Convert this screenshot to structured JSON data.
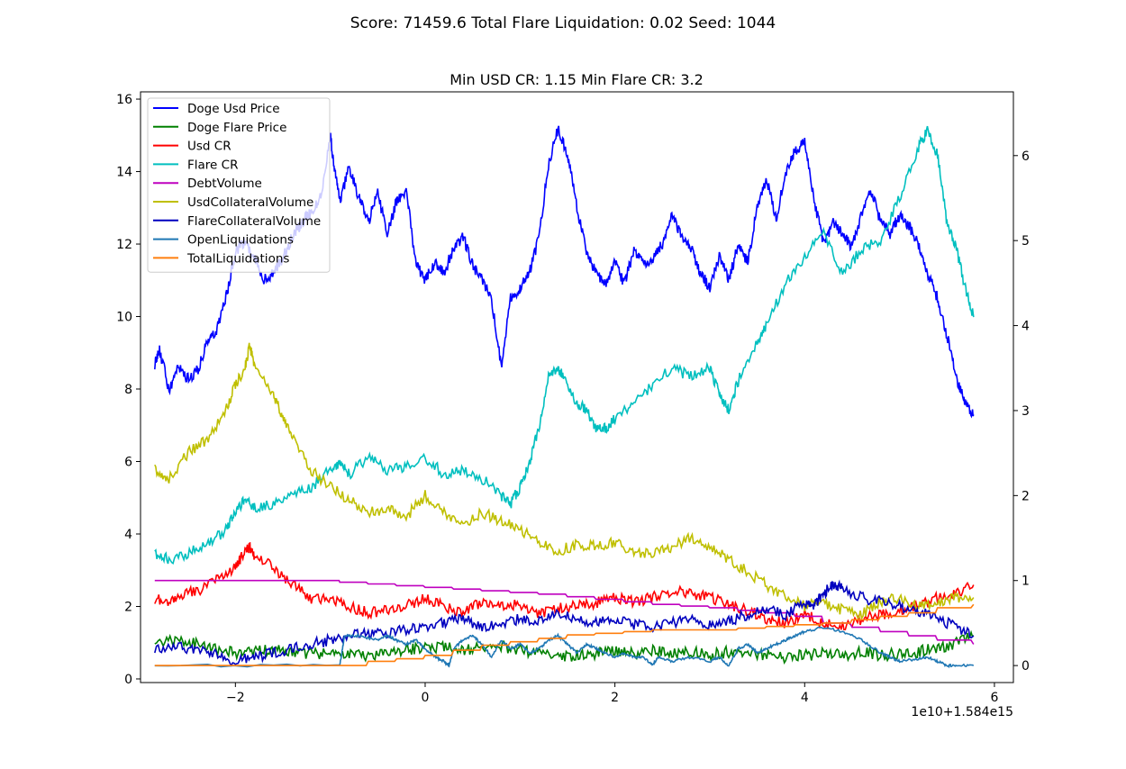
{
  "figure": {
    "suptitle": "Score: 71459.6 Total Flare Liquidation: 0.02 Seed: 1044"
  },
  "chart_data": {
    "type": "line",
    "title": "Min USD CR: 1.15 Min Flare CR: 3.2",
    "x_offset_label": "1e10+1.584e15",
    "xlim": [
      -3.0,
      6.2
    ],
    "x_ticks": [
      -2,
      0,
      2,
      4,
      6
    ],
    "x_tick_labels": [
      "−2",
      "0",
      "2",
      "4",
      "6"
    ],
    "ylim_left": [
      -0.1,
      16.2
    ],
    "left_ticks": [
      0,
      2,
      4,
      6,
      8,
      10,
      12,
      14,
      16
    ],
    "left_tick_labels": [
      "0",
      "2",
      "4",
      "6",
      "8",
      "10",
      "12",
      "14",
      "16"
    ],
    "ylim_right": [
      -0.2,
      6.75
    ],
    "right_ticks": [
      0,
      1,
      2,
      3,
      4,
      5,
      6
    ],
    "right_tick_labels": [
      "0",
      "1",
      "2",
      "3",
      "4",
      "5",
      "6"
    ],
    "grid": false,
    "legend_position": "upper-left",
    "series": [
      {
        "name": "Doge Usd Price",
        "axis": "left",
        "color": "#0000ff",
        "x": [
          -2.85,
          -2.8,
          -2.7,
          -2.6,
          -2.5,
          -2.4,
          -2.3,
          -2.2,
          -2.1,
          -2.0,
          -1.9,
          -1.8,
          -1.7,
          -1.6,
          -1.5,
          -1.4,
          -1.3,
          -1.2,
          -1.1,
          -1.0,
          -0.95,
          -0.9,
          -0.8,
          -0.7,
          -0.6,
          -0.5,
          -0.4,
          -0.3,
          -0.2,
          -0.1,
          0.0,
          0.1,
          0.2,
          0.3,
          0.4,
          0.5,
          0.6,
          0.7,
          0.8,
          0.9,
          1.0,
          1.1,
          1.2,
          1.3,
          1.4,
          1.5,
          1.6,
          1.7,
          1.8,
          1.9,
          2.0,
          2.1,
          2.2,
          2.3,
          2.4,
          2.5,
          2.6,
          2.7,
          2.8,
          2.9,
          3.0,
          3.1,
          3.2,
          3.3,
          3.4,
          3.5,
          3.6,
          3.7,
          3.8,
          3.9,
          4.0,
          4.1,
          4.2,
          4.3,
          4.4,
          4.5,
          4.6,
          4.7,
          4.8,
          4.9,
          5.0,
          5.1,
          5.2,
          5.3,
          5.4,
          5.5,
          5.6,
          5.7,
          5.78
        ],
        "y": [
          8.7,
          9.1,
          8.0,
          8.6,
          8.3,
          8.5,
          9.3,
          9.6,
          10.5,
          11.8,
          12.1,
          11.6,
          11.0,
          11.2,
          11.6,
          12.2,
          12.6,
          12.9,
          13.3,
          15.0,
          14.0,
          13.2,
          14.1,
          13.3,
          12.6,
          13.4,
          12.3,
          13.2,
          13.5,
          11.5,
          11.0,
          11.5,
          11.2,
          11.9,
          12.2,
          11.4,
          11.0,
          10.5,
          8.6,
          10.5,
          10.8,
          11.2,
          12.2,
          14.2,
          15.2,
          14.5,
          13.0,
          11.8,
          11.2,
          10.9,
          11.5,
          10.9,
          11.8,
          11.5,
          11.6,
          12.0,
          12.8,
          12.2,
          11.9,
          11.2,
          10.8,
          11.7,
          11.0,
          12.0,
          11.5,
          13.0,
          13.8,
          12.7,
          14.0,
          14.6,
          14.8,
          13.2,
          12.0,
          12.6,
          12.3,
          11.9,
          12.8,
          13.5,
          12.6,
          12.3,
          12.8,
          12.5,
          12.0,
          11.2,
          10.5,
          9.5,
          8.3,
          7.6,
          7.3
        ]
      },
      {
        "name": "Doge Flare Price",
        "axis": "left",
        "color": "#008000",
        "x": [
          -2.85,
          -2.6,
          -2.4,
          -2.2,
          -2.0,
          -1.8,
          -1.6,
          -1.4,
          -1.2,
          -1.0,
          -0.8,
          -0.6,
          -0.4,
          -0.2,
          0.0,
          0.2,
          0.4,
          0.6,
          0.8,
          1.0,
          1.2,
          1.4,
          1.6,
          1.8,
          2.0,
          2.2,
          2.4,
          2.6,
          2.8,
          3.0,
          3.2,
          3.4,
          3.6,
          3.8,
          4.0,
          4.2,
          4.4,
          4.6,
          4.8,
          5.0,
          5.2,
          5.4,
          5.6,
          5.78
        ],
        "y": [
          1.0,
          1.05,
          0.95,
          0.85,
          0.7,
          0.75,
          0.8,
          0.75,
          0.7,
          0.7,
          0.65,
          0.65,
          0.75,
          0.8,
          0.85,
          0.9,
          0.8,
          0.85,
          0.9,
          0.8,
          0.7,
          0.6,
          0.65,
          0.7,
          0.75,
          0.7,
          0.8,
          0.7,
          0.75,
          0.65,
          0.75,
          0.7,
          0.65,
          0.6,
          0.65,
          0.7,
          0.65,
          0.75,
          0.65,
          0.7,
          0.75,
          0.85,
          1.0,
          1.2
        ]
      },
      {
        "name": "Usd CR",
        "axis": "right",
        "color": "#ff0000",
        "x": [
          -2.85,
          -2.7,
          -2.6,
          -2.4,
          -2.2,
          -2.0,
          -1.9,
          -1.85,
          -1.8,
          -1.6,
          -1.4,
          -1.2,
          -1.0,
          -0.8,
          -0.6,
          -0.4,
          -0.2,
          0.0,
          0.2,
          0.4,
          0.6,
          0.8,
          1.0,
          1.2,
          1.4,
          1.6,
          1.8,
          2.0,
          2.2,
          2.4,
          2.6,
          2.8,
          3.0,
          3.2,
          3.4,
          3.6,
          3.8,
          4.0,
          4.2,
          4.4,
          4.6,
          4.8,
          5.0,
          5.2,
          5.4,
          5.6,
          5.78
        ],
        "y": [
          0.78,
          0.75,
          0.82,
          0.88,
          1.0,
          1.15,
          1.35,
          1.4,
          1.3,
          1.15,
          0.95,
          0.78,
          0.8,
          0.7,
          0.62,
          0.65,
          0.7,
          0.8,
          0.7,
          0.62,
          0.75,
          0.68,
          0.72,
          0.6,
          0.68,
          0.7,
          0.74,
          0.8,
          0.75,
          0.8,
          0.88,
          0.85,
          0.8,
          0.72,
          0.65,
          0.55,
          0.5,
          0.6,
          0.5,
          0.45,
          0.55,
          0.6,
          0.65,
          0.7,
          0.8,
          0.85,
          0.95
        ]
      },
      {
        "name": "Flare CR",
        "axis": "right",
        "color": "#00bfbf",
        "x": [
          -2.85,
          -2.7,
          -2.5,
          -2.3,
          -2.1,
          -2.0,
          -1.9,
          -1.8,
          -1.6,
          -1.4,
          -1.2,
          -1.0,
          -0.9,
          -0.8,
          -0.6,
          -0.4,
          -0.2,
          0.0,
          0.2,
          0.4,
          0.6,
          0.8,
          0.9,
          1.0,
          1.1,
          1.2,
          1.3,
          1.4,
          1.5,
          1.6,
          1.7,
          1.8,
          1.9,
          2.0,
          2.2,
          2.4,
          2.6,
          2.8,
          3.0,
          3.1,
          3.2,
          3.3,
          3.5,
          3.6,
          3.8,
          4.0,
          4.2,
          4.4,
          4.6,
          4.8,
          5.0,
          5.2,
          5.3,
          5.4,
          5.5,
          5.6,
          5.7,
          5.78
        ],
        "y": [
          1.32,
          1.25,
          1.32,
          1.42,
          1.6,
          1.8,
          1.95,
          1.85,
          1.9,
          2.0,
          2.1,
          2.3,
          2.4,
          2.25,
          2.45,
          2.3,
          2.35,
          2.45,
          2.25,
          2.3,
          2.2,
          2.0,
          1.9,
          2.1,
          2.4,
          2.8,
          3.4,
          3.5,
          3.3,
          3.1,
          3.0,
          2.8,
          2.8,
          2.9,
          3.1,
          3.3,
          3.5,
          3.4,
          3.5,
          3.2,
          3.0,
          3.35,
          3.8,
          4.0,
          4.5,
          4.8,
          5.1,
          4.6,
          4.9,
          5.0,
          5.5,
          6.1,
          6.3,
          6.0,
          5.2,
          4.9,
          4.4,
          4.1
        ]
      },
      {
        "name": "DebtVolume",
        "axis": "right",
        "color": "#bf00bf",
        "x": [
          -2.85,
          -1.0,
          -0.9,
          -0.6,
          -0.3,
          0.0,
          0.3,
          0.6,
          0.9,
          1.2,
          1.5,
          1.8,
          2.1,
          2.4,
          2.7,
          3.0,
          3.3,
          3.6,
          3.9,
          4.2,
          4.5,
          4.8,
          5.1,
          5.4,
          5.78
        ],
        "y": [
          1.0,
          1.0,
          0.98,
          0.96,
          0.94,
          0.92,
          0.9,
          0.88,
          0.86,
          0.84,
          0.81,
          0.78,
          0.75,
          0.72,
          0.7,
          0.68,
          0.65,
          0.62,
          0.58,
          0.5,
          0.45,
          0.4,
          0.35,
          0.3,
          0.25
        ]
      },
      {
        "name": "UsdCollateralVolume",
        "axis": "right",
        "color": "#bfbf00",
        "x": [
          -2.85,
          -2.7,
          -2.5,
          -2.3,
          -2.1,
          -2.0,
          -1.9,
          -1.85,
          -1.8,
          -1.6,
          -1.5,
          -1.4,
          -1.2,
          -1.0,
          -0.8,
          -0.6,
          -0.4,
          -0.2,
          0.0,
          0.2,
          0.4,
          0.6,
          0.8,
          1.0,
          1.2,
          1.4,
          1.6,
          1.8,
          2.0,
          2.2,
          2.4,
          2.6,
          2.8,
          3.0,
          3.2,
          3.4,
          3.6,
          3.8,
          4.0,
          4.2,
          4.4,
          4.6,
          4.8,
          5.0,
          5.2,
          5.4,
          5.6,
          5.78
        ],
        "y": [
          2.3,
          2.2,
          2.5,
          2.65,
          3.0,
          3.3,
          3.5,
          3.75,
          3.55,
          3.2,
          2.9,
          2.7,
          2.3,
          2.1,
          1.95,
          1.8,
          1.85,
          1.75,
          2.0,
          1.8,
          1.65,
          1.8,
          1.7,
          1.6,
          1.45,
          1.35,
          1.42,
          1.4,
          1.45,
          1.35,
          1.3,
          1.4,
          1.5,
          1.4,
          1.25,
          1.1,
          0.95,
          0.8,
          0.7,
          0.75,
          0.65,
          0.6,
          0.75,
          0.8,
          0.7,
          0.75,
          0.8,
          0.8
        ]
      },
      {
        "name": "FlareCollateralVolume",
        "axis": "right",
        "color": "#0000bf",
        "x": [
          -2.85,
          -2.6,
          -2.4,
          -2.2,
          -2.0,
          -1.8,
          -1.6,
          -1.4,
          -1.2,
          -1.0,
          -0.8,
          -0.6,
          -0.4,
          -0.2,
          0.0,
          0.2,
          0.4,
          0.6,
          0.8,
          1.0,
          1.2,
          1.4,
          1.6,
          1.8,
          2.0,
          2.2,
          2.4,
          2.6,
          2.8,
          3.0,
          3.2,
          3.4,
          3.6,
          3.8,
          4.0,
          4.1,
          4.2,
          4.3,
          4.4,
          4.6,
          4.8,
          5.0,
          5.2,
          5.4,
          5.6,
          5.78
        ],
        "y": [
          0.2,
          0.22,
          0.18,
          0.12,
          0.05,
          0.1,
          0.15,
          0.2,
          0.25,
          0.3,
          0.35,
          0.4,
          0.38,
          0.42,
          0.45,
          0.5,
          0.55,
          0.45,
          0.5,
          0.55,
          0.52,
          0.6,
          0.55,
          0.5,
          0.55,
          0.48,
          0.45,
          0.5,
          0.55,
          0.48,
          0.52,
          0.6,
          0.65,
          0.6,
          0.75,
          0.7,
          0.85,
          0.95,
          0.9,
          0.8,
          0.75,
          0.7,
          0.65,
          0.55,
          0.45,
          0.35
        ]
      },
      {
        "name": "OpenLiquidations",
        "axis": "right",
        "color": "#1f77b4",
        "x": [
          -2.85,
          -0.9,
          -0.85,
          -0.7,
          -0.5,
          -0.4,
          -0.3,
          -0.2,
          -0.1,
          0.0,
          0.1,
          0.2,
          0.25,
          0.3,
          0.4,
          0.5,
          0.6,
          0.7,
          0.8,
          0.9,
          1.0,
          1.1,
          1.2,
          1.3,
          1.4,
          1.5,
          1.6,
          1.7,
          1.8,
          1.9,
          2.0,
          2.1,
          2.2,
          2.3,
          2.4,
          2.45,
          2.6,
          2.8,
          3.0,
          3.1,
          3.2,
          3.3,
          3.4,
          3.5,
          3.6,
          3.7,
          3.8,
          3.9,
          4.0,
          4.2,
          4.4,
          4.6,
          4.8,
          4.9,
          5.0,
          5.2,
          5.3,
          5.4,
          5.5,
          5.6,
          5.78
        ],
        "y": [
          0,
          0,
          0.35,
          0.35,
          0.3,
          0.35,
          0.3,
          0.25,
          0.3,
          0.2,
          0.1,
          0.05,
          0,
          0.2,
          0.3,
          0.35,
          0.25,
          0.1,
          0.3,
          0.2,
          0.25,
          0.15,
          0.2,
          0.3,
          0.35,
          0.25,
          0.15,
          0.25,
          0.2,
          0.15,
          0.1,
          0.15,
          0.1,
          0.1,
          0,
          0.1,
          0.05,
          0.1,
          0.05,
          0.1,
          0,
          0.2,
          0.25,
          0.15,
          0.2,
          0.25,
          0.3,
          0.35,
          0.4,
          0.45,
          0.4,
          0.3,
          0.15,
          0.1,
          0.05,
          0.08,
          0.1,
          0.05,
          0,
          0,
          0
        ]
      },
      {
        "name": "TotalLiquidations",
        "axis": "right",
        "color": "#ff7f0e",
        "x": [
          -2.85,
          -0.9,
          -0.6,
          -0.3,
          0.0,
          0.3,
          0.6,
          0.9,
          1.2,
          1.5,
          1.8,
          2.1,
          2.4,
          2.7,
          3.0,
          3.3,
          3.6,
          3.9,
          4.2,
          4.5,
          4.8,
          5.1,
          5.4,
          5.78
        ],
        "y": [
          0,
          0,
          0.05,
          0.08,
          0.12,
          0.18,
          0.24,
          0.28,
          0.32,
          0.36,
          0.38,
          0.4,
          0.42,
          0.42,
          0.42,
          0.44,
          0.46,
          0.48,
          0.5,
          0.54,
          0.58,
          0.62,
          0.68,
          0.72
        ]
      }
    ]
  }
}
